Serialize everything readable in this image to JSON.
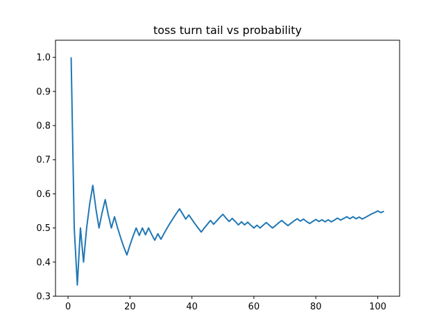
{
  "chart_data": {
    "type": "line",
    "title": "toss turn tail vs probability",
    "xlabel": "",
    "ylabel": "",
    "xlim": [
      -4.05,
      107.05
    ],
    "ylim": [
      0.3,
      1.05
    ],
    "xticks": [
      0,
      20,
      40,
      60,
      80,
      100
    ],
    "yticks": [
      0.3,
      0.4,
      0.5,
      0.6,
      0.7,
      0.8,
      0.9,
      1.0
    ],
    "xtick_labels": [
      "0",
      "20",
      "40",
      "60",
      "80",
      "100"
    ],
    "ytick_labels": [
      "0.3",
      "0.4",
      "0.5",
      "0.6",
      "0.7",
      "0.8",
      "0.9",
      "1.0"
    ],
    "grid": false,
    "color": "#1f77b4",
    "series": [
      {
        "x": [
          1,
          2,
          3,
          4,
          5,
          6,
          7,
          8,
          9,
          10,
          11,
          12,
          13,
          14,
          15,
          16,
          17,
          18,
          19,
          20,
          21,
          22,
          23,
          24,
          25,
          26,
          27,
          28,
          29,
          30,
          31,
          32,
          33,
          34,
          35,
          36,
          37,
          38,
          39,
          40,
          41,
          42,
          43,
          44,
          45,
          46,
          47,
          48,
          49,
          50,
          51,
          52,
          53,
          54,
          55,
          56,
          57,
          58,
          59,
          60,
          61,
          62,
          63,
          64,
          65,
          66,
          67,
          68,
          69,
          70,
          71,
          72,
          73,
          74,
          75,
          76,
          77,
          78,
          79,
          80,
          81,
          82,
          83,
          84,
          85,
          86,
          87,
          88,
          89,
          90,
          91,
          92,
          93,
          94,
          95,
          96,
          97,
          98,
          99,
          100,
          101,
          102
        ],
        "values": [
          1.0,
          0.5,
          0.333,
          0.5,
          0.4,
          0.5,
          0.571,
          0.625,
          0.556,
          0.5,
          0.545,
          0.583,
          0.538,
          0.5,
          0.533,
          0.5,
          0.471,
          0.444,
          0.421,
          0.45,
          0.476,
          0.5,
          0.478,
          0.5,
          0.48,
          0.5,
          0.481,
          0.464,
          0.483,
          0.467,
          0.484,
          0.5,
          0.515,
          0.529,
          0.543,
          0.556,
          0.541,
          0.526,
          0.538,
          0.525,
          0.512,
          0.5,
          0.488,
          0.5,
          0.511,
          0.522,
          0.511,
          0.521,
          0.531,
          0.54,
          0.529,
          0.519,
          0.528,
          0.519,
          0.509,
          0.518,
          0.509,
          0.517,
          0.508,
          0.5,
          0.508,
          0.5,
          0.508,
          0.516,
          0.508,
          0.5,
          0.507,
          0.515,
          0.522,
          0.514,
          0.507,
          0.514,
          0.521,
          0.527,
          0.52,
          0.526,
          0.519,
          0.513,
          0.519,
          0.525,
          0.519,
          0.524,
          0.518,
          0.524,
          0.518,
          0.523,
          0.529,
          0.523,
          0.528,
          0.533,
          0.527,
          0.533,
          0.527,
          0.532,
          0.526,
          0.531,
          0.536,
          0.541,
          0.545,
          0.55,
          0.545,
          0.549
        ]
      }
    ]
  }
}
